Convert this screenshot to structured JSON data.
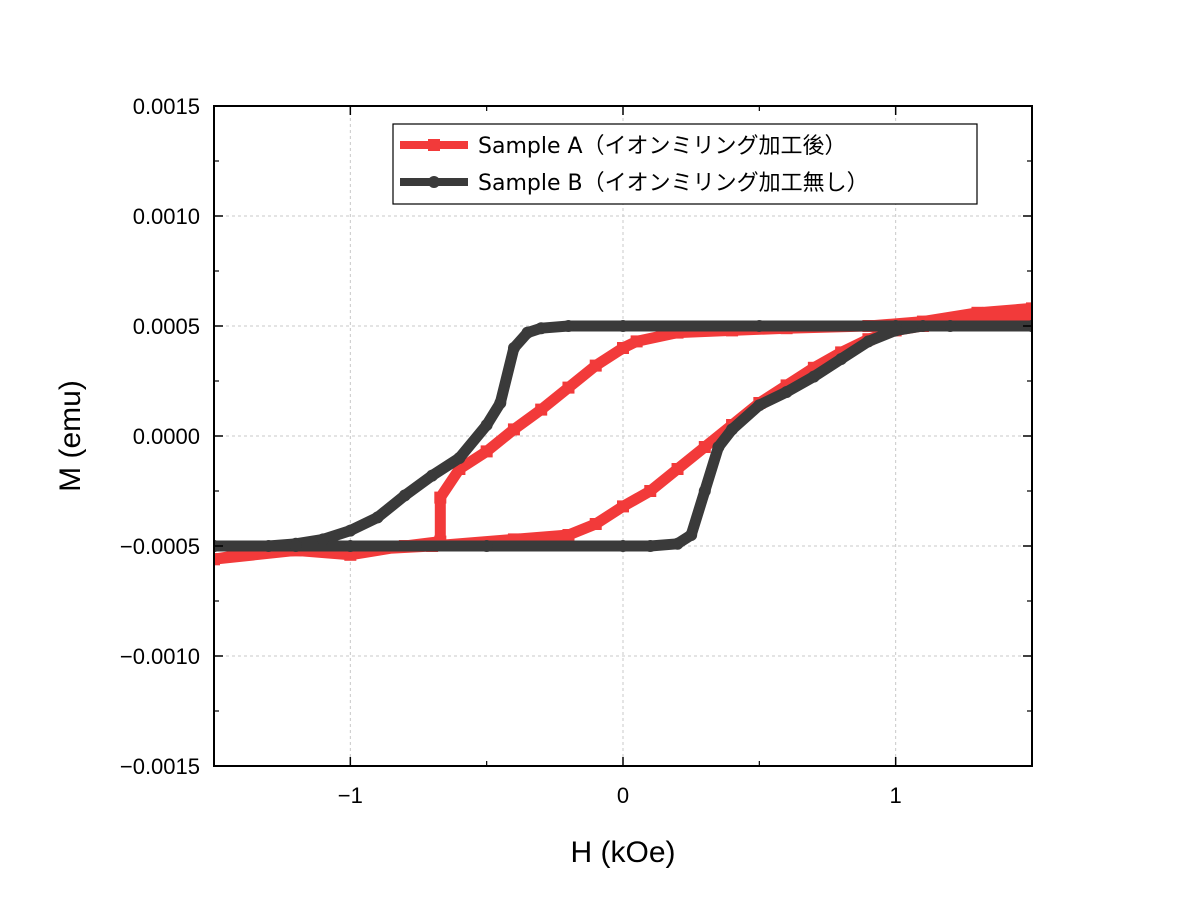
{
  "chart_data": {
    "type": "line",
    "xlabel": "H (kOe)",
    "ylabel": "M (emu)",
    "xlim": [
      -1.5,
      1.5
    ],
    "ylim": [
      -0.0015,
      0.0015
    ],
    "xticks": [
      -1,
      0,
      1
    ],
    "xtick_labels": [
      "−1",
      "0",
      "1"
    ],
    "yticks": [
      -0.0015,
      -0.001,
      -0.0005,
      0,
      0.0005,
      0.001,
      0.0015
    ],
    "ytick_labels": [
      "−0.0015",
      "−0.0010",
      "−0.0005",
      "0.0000",
      "0.0005",
      "0.0010",
      "0.0015"
    ],
    "grid": true,
    "legend_position": "top-right",
    "series": [
      {
        "name": "Sample A（イオンミリング加工後）",
        "color": "#f23a3a",
        "marker": "square",
        "x": [
          1.5,
          1.3,
          1.1,
          0.9,
          0.6,
          0.4,
          0.2,
          0.05,
          0.0,
          -0.1,
          -0.2,
          -0.3,
          -0.4,
          -0.5,
          -0.6,
          -0.67,
          -0.67,
          -0.8,
          -1.0,
          -1.2,
          -1.5,
          -1.5,
          -1.3,
          -1.0,
          -0.7,
          -0.4,
          -0.2,
          -0.1,
          0.0,
          0.1,
          0.2,
          0.3,
          0.4,
          0.5,
          0.6,
          0.7,
          0.8,
          0.9,
          1.0,
          1.1,
          1.3,
          1.5
        ],
        "y": [
          0.00058,
          0.00056,
          0.00052,
          0.0005,
          0.00049,
          0.00048,
          0.00047,
          0.00043,
          0.0004,
          0.00032,
          0.00022,
          0.00012,
          3e-05,
          -7e-05,
          -0.00015,
          -0.00028,
          -0.00048,
          -0.0005,
          -0.00054,
          -0.00052,
          -0.00056,
          -0.00056,
          -0.00052,
          -0.00052,
          -0.0005,
          -0.00047,
          -0.00045,
          -0.0004,
          -0.00032,
          -0.00025,
          -0.00015,
          -5e-05,
          5e-05,
          0.00015,
          0.00023,
          0.00031,
          0.00038,
          0.00044,
          0.00048,
          0.0005,
          0.00052,
          0.00054
        ]
      },
      {
        "name": "Sample B（イオンミリング加工無し）",
        "color": "#3a3a3a",
        "marker": "circle",
        "x": [
          1.5,
          1.2,
          1.0,
          0.5,
          0.0,
          -0.2,
          -0.3,
          -0.35,
          -0.4,
          -0.45,
          -0.5,
          -0.6,
          -0.7,
          -0.8,
          -0.9,
          -1.0,
          -1.1,
          -1.2,
          -1.3,
          -1.5,
          -1.5,
          -1.2,
          -1.0,
          -0.5,
          0.0,
          0.1,
          0.2,
          0.25,
          0.3,
          0.35,
          0.4,
          0.5,
          0.6,
          0.7,
          0.8,
          0.9,
          1.0,
          1.1,
          1.5
        ],
        "y": [
          0.0005,
          0.0005,
          0.0005,
          0.0005,
          0.0005,
          0.0005,
          0.00049,
          0.00047,
          0.0004,
          0.00015,
          5e-05,
          -0.0001,
          -0.00018,
          -0.00027,
          -0.00037,
          -0.00043,
          -0.00047,
          -0.00049,
          -0.0005,
          -0.0005,
          -0.0005,
          -0.0005,
          -0.0005,
          -0.0005,
          -0.0005,
          -0.0005,
          -0.00049,
          -0.00045,
          -0.00025,
          -5e-05,
          3e-05,
          0.00014,
          0.0002,
          0.00027,
          0.00035,
          0.00043,
          0.00048,
          0.0005,
          0.0005
        ]
      }
    ]
  }
}
